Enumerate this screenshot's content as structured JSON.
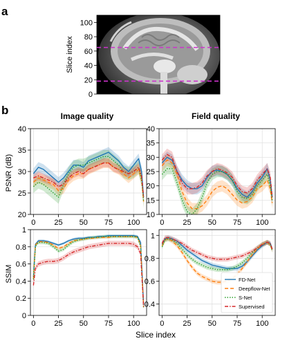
{
  "panel_labels": {
    "a": "a",
    "b": "b"
  },
  "column_titles": [
    "Image quality",
    "Field quality"
  ],
  "chart_data": [
    {
      "type": "image",
      "panel": "a",
      "ylabel": "Slice index",
      "ylim": [
        0,
        110
      ],
      "yticks": [
        0,
        20,
        40,
        60,
        80,
        100
      ],
      "lines": [
        {
          "y": 65,
          "color": "#cc33cc",
          "style": "dashed"
        },
        {
          "y": 18,
          "color": "#cc33cc",
          "style": "dashed"
        }
      ]
    },
    {
      "type": "line",
      "panel": "PSNR-image",
      "ylabel": "PSNR (dB)",
      "ylim": [
        20,
        40
      ],
      "xlim": [
        -3,
        113
      ],
      "xticks": [
        0,
        25,
        50,
        75,
        100
      ],
      "yticks": [
        20,
        25,
        30,
        35,
        40
      ],
      "grid": true,
      "series": [
        {
          "name": "FD-Net",
          "color": "#1f77b4",
          "style": "solid",
          "x": [
            0,
            5,
            10,
            15,
            20,
            25,
            30,
            35,
            40,
            45,
            50,
            55,
            60,
            65,
            70,
            75,
            80,
            85,
            90,
            95,
            100,
            105,
            108,
            110
          ],
          "y": [
            29.5,
            31,
            30.5,
            29.5,
            28.5,
            27.5,
            28.5,
            30,
            31.5,
            31.5,
            31,
            32.5,
            33,
            33.5,
            34,
            34.5,
            33.5,
            32.5,
            31,
            30,
            31.5,
            33,
            30,
            24
          ],
          "band": 1.2
        },
        {
          "name": "Deepflow-Net",
          "color": "#ff7f0e",
          "style": "dashed",
          "x": [
            0,
            5,
            10,
            15,
            20,
            25,
            30,
            35,
            40,
            45,
            50,
            55,
            60,
            65,
            70,
            75,
            80,
            85,
            90,
            95,
            100,
            105,
            108,
            110
          ],
          "y": [
            27.5,
            28.5,
            28,
            27.5,
            27,
            25.5,
            26,
            28,
            29,
            29.5,
            29.5,
            30.5,
            31,
            31.5,
            32,
            32,
            31,
            30.5,
            29.5,
            28.5,
            29.5,
            30.5,
            28,
            23
          ],
          "band": 1.2
        },
        {
          "name": "S-Net",
          "color": "#2ca02c",
          "style": "dotted",
          "x": [
            0,
            5,
            10,
            15,
            20,
            25,
            30,
            35,
            40,
            45,
            50,
            55,
            60,
            65,
            70,
            75,
            80,
            85,
            90,
            95,
            100,
            105,
            108,
            110
          ],
          "y": [
            26.5,
            27.5,
            27,
            26,
            25,
            24,
            27,
            29.5,
            31,
            31.5,
            31.5,
            32,
            32.5,
            33,
            33.5,
            33.5,
            32.5,
            31.5,
            30,
            29.5,
            30,
            31,
            28,
            23
          ],
          "band": 1.5
        },
        {
          "name": "Supervised",
          "color": "#d62728",
          "style": "dashdot",
          "x": [
            0,
            5,
            10,
            15,
            20,
            25,
            30,
            35,
            40,
            45,
            50,
            55,
            60,
            65,
            70,
            75,
            80,
            85,
            90,
            95,
            100,
            105,
            108,
            110
          ],
          "y": [
            28.5,
            29,
            28.5,
            28,
            27.5,
            26.5,
            27,
            28.5,
            29.5,
            30,
            29.5,
            30.5,
            31,
            31.5,
            32,
            32,
            31,
            30.5,
            30,
            29.5,
            30,
            31,
            29,
            24
          ],
          "band": 1.0
        }
      ]
    },
    {
      "type": "line",
      "panel": "PSNR-field",
      "ylim": [
        10,
        40
      ],
      "xlim": [
        -3,
        113
      ],
      "xticks": [
        0,
        25,
        50,
        75,
        100
      ],
      "yticks": [
        10,
        15,
        20,
        25,
        30,
        35,
        40
      ],
      "grid": true,
      "series": [
        {
          "name": "FD-Net",
          "color": "#1f77b4",
          "style": "solid",
          "x": [
            0,
            5,
            10,
            15,
            20,
            25,
            30,
            35,
            40,
            45,
            50,
            55,
            60,
            65,
            70,
            75,
            80,
            85,
            90,
            95,
            100,
            105,
            108,
            110
          ],
          "y": [
            28,
            30,
            29,
            25,
            22,
            20,
            19,
            19,
            20,
            23,
            25,
            25.5,
            25,
            24,
            22,
            19,
            17,
            16,
            18,
            21,
            23,
            26,
            22,
            16
          ],
          "band": 2
        },
        {
          "name": "Deepflow-Net",
          "color": "#ff7f0e",
          "style": "dashed",
          "x": [
            0,
            5,
            10,
            15,
            20,
            25,
            30,
            35,
            40,
            45,
            50,
            55,
            60,
            65,
            70,
            75,
            80,
            85,
            90,
            95,
            100,
            105,
            108,
            110
          ],
          "y": [
            27,
            29,
            28,
            24,
            18,
            14,
            12,
            12,
            13,
            15,
            18,
            19.5,
            20,
            19,
            17,
            15,
            14,
            14.5,
            16,
            19,
            20,
            22,
            19,
            14
          ],
          "band": 2
        },
        {
          "name": "S-Net",
          "color": "#2ca02c",
          "style": "dotted",
          "x": [
            0,
            5,
            10,
            15,
            20,
            25,
            30,
            35,
            40,
            45,
            50,
            55,
            60,
            65,
            70,
            75,
            80,
            85,
            90,
            95,
            100,
            105,
            108,
            110
          ],
          "y": [
            24,
            26,
            26,
            21,
            15,
            11,
            10,
            12,
            16,
            21,
            24,
            25,
            25,
            24,
            22,
            18,
            16,
            15.5,
            17,
            20,
            22,
            24,
            20,
            15
          ],
          "band": 2
        },
        {
          "name": "Supervised",
          "color": "#d62728",
          "style": "dashdot",
          "x": [
            0,
            5,
            10,
            15,
            20,
            25,
            30,
            35,
            40,
            45,
            50,
            55,
            60,
            65,
            70,
            75,
            80,
            85,
            90,
            95,
            100,
            105,
            108,
            110
          ],
          "y": [
            29,
            31,
            30,
            25,
            21,
            19,
            19,
            19.5,
            21,
            23.5,
            25,
            26,
            25.5,
            24.5,
            23,
            20,
            18,
            17.5,
            19,
            22,
            24,
            26,
            23,
            16
          ],
          "band": 2
        }
      ]
    },
    {
      "type": "line",
      "panel": "SSIM-image",
      "xlabel": "",
      "ylabel": "SSIM",
      "ylim": [
        0.0,
        1.0
      ],
      "xlim": [
        -3,
        113
      ],
      "xticks": [
        0,
        25,
        50,
        75,
        100
      ],
      "yticks": [
        0.0,
        0.2,
        0.4,
        0.6,
        0.8,
        1.0
      ],
      "grid": true,
      "series": [
        {
          "name": "FD-Net",
          "color": "#1f77b4",
          "style": "solid",
          "x": [
            0,
            2,
            5,
            10,
            15,
            20,
            25,
            30,
            35,
            40,
            45,
            50,
            55,
            60,
            65,
            70,
            75,
            80,
            85,
            90,
            95,
            100,
            104,
            107,
            110
          ],
          "y": [
            0.45,
            0.83,
            0.87,
            0.87,
            0.86,
            0.84,
            0.82,
            0.84,
            0.87,
            0.89,
            0.9,
            0.9,
            0.91,
            0.91,
            0.92,
            0.92,
            0.93,
            0.93,
            0.93,
            0.93,
            0.93,
            0.93,
            0.92,
            0.85,
            0.12
          ],
          "band": 0.015
        },
        {
          "name": "Deepflow-Net",
          "color": "#ff7f0e",
          "style": "dashed",
          "x": [
            0,
            2,
            5,
            10,
            15,
            20,
            25,
            30,
            35,
            40,
            45,
            50,
            55,
            60,
            65,
            70,
            75,
            80,
            85,
            90,
            95,
            100,
            104,
            107,
            110
          ],
          "y": [
            0.43,
            0.82,
            0.86,
            0.86,
            0.85,
            0.82,
            0.78,
            0.8,
            0.84,
            0.87,
            0.88,
            0.89,
            0.9,
            0.9,
            0.91,
            0.91,
            0.91,
            0.92,
            0.92,
            0.92,
            0.92,
            0.92,
            0.91,
            0.82,
            0.1
          ],
          "band": 0.015
        },
        {
          "name": "S-Net",
          "color": "#2ca02c",
          "style": "dotted",
          "x": [
            0,
            2,
            5,
            10,
            15,
            20,
            25,
            30,
            35,
            40,
            45,
            50,
            55,
            60,
            65,
            70,
            75,
            80,
            85,
            90,
            95,
            100,
            104,
            107,
            110
          ],
          "y": [
            0.42,
            0.81,
            0.85,
            0.85,
            0.84,
            0.8,
            0.75,
            0.77,
            0.82,
            0.86,
            0.88,
            0.89,
            0.9,
            0.91,
            0.91,
            0.92,
            0.92,
            0.92,
            0.92,
            0.92,
            0.92,
            0.92,
            0.91,
            0.8,
            0.08
          ],
          "band": 0.02
        },
        {
          "name": "Supervised",
          "color": "#d62728",
          "style": "dashdot",
          "x": [
            0,
            2,
            5,
            10,
            15,
            20,
            25,
            30,
            35,
            40,
            45,
            50,
            55,
            60,
            65,
            70,
            75,
            80,
            85,
            90,
            95,
            100,
            104,
            107,
            110
          ],
          "y": [
            0.35,
            0.55,
            0.6,
            0.62,
            0.63,
            0.63,
            0.64,
            0.67,
            0.71,
            0.74,
            0.76,
            0.78,
            0.8,
            0.81,
            0.82,
            0.83,
            0.84,
            0.84,
            0.84,
            0.84,
            0.84,
            0.83,
            0.8,
            0.72,
            0.1
          ],
          "band": 0.03
        }
      ]
    },
    {
      "type": "line",
      "panel": "SSIM-field",
      "ylim": [
        0.3,
        1.05
      ],
      "xlim": [
        -3,
        113
      ],
      "xticks": [
        0,
        25,
        50,
        75,
        100
      ],
      "yticks": [
        0.4,
        0.6,
        0.8,
        1.0
      ],
      "grid": true,
      "legend": "bottom-right",
      "series": [
        {
          "name": "FD-Net",
          "color": "#1f77b4",
          "style": "solid",
          "x": [
            0,
            3,
            6,
            10,
            15,
            20,
            25,
            30,
            35,
            40,
            45,
            50,
            55,
            60,
            65,
            70,
            75,
            80,
            85,
            90,
            95,
            100,
            105,
            108,
            110
          ],
          "y": [
            0.92,
            0.97,
            0.98,
            0.97,
            0.95,
            0.91,
            0.87,
            0.84,
            0.81,
            0.78,
            0.76,
            0.74,
            0.73,
            0.72,
            0.71,
            0.71,
            0.71,
            0.73,
            0.77,
            0.82,
            0.87,
            0.91,
            0.94,
            0.93,
            0.88
          ],
          "band": 0.02
        },
        {
          "name": "Deepflow-Net",
          "color": "#ff7f0e",
          "style": "dashed",
          "x": [
            0,
            3,
            6,
            10,
            15,
            20,
            25,
            30,
            35,
            40,
            45,
            50,
            55,
            60,
            65,
            70,
            75,
            80,
            85,
            90,
            95,
            100,
            105,
            108,
            110
          ],
          "y": [
            0.91,
            0.96,
            0.97,
            0.95,
            0.91,
            0.85,
            0.78,
            0.72,
            0.67,
            0.64,
            0.62,
            0.6,
            0.59,
            0.59,
            0.6,
            0.62,
            0.66,
            0.71,
            0.77,
            0.83,
            0.88,
            0.92,
            0.94,
            0.92,
            0.87
          ],
          "band": 0.02
        },
        {
          "name": "S-Net",
          "color": "#2ca02c",
          "style": "dotted",
          "x": [
            0,
            3,
            6,
            10,
            15,
            20,
            25,
            30,
            35,
            40,
            45,
            50,
            55,
            60,
            65,
            70,
            75,
            80,
            85,
            90,
            95,
            100,
            105,
            108,
            110
          ],
          "y": [
            0.9,
            0.96,
            0.97,
            0.96,
            0.93,
            0.88,
            0.83,
            0.79,
            0.76,
            0.74,
            0.72,
            0.71,
            0.7,
            0.7,
            0.7,
            0.71,
            0.73,
            0.76,
            0.8,
            0.85,
            0.89,
            0.92,
            0.94,
            0.92,
            0.87
          ],
          "band": 0.02
        },
        {
          "name": "Supervised",
          "color": "#d62728",
          "style": "dashdot",
          "x": [
            0,
            3,
            6,
            10,
            15,
            20,
            25,
            30,
            35,
            40,
            45,
            50,
            55,
            60,
            65,
            70,
            75,
            80,
            85,
            90,
            95,
            100,
            105,
            108,
            110
          ],
          "y": [
            0.93,
            0.98,
            0.98,
            0.97,
            0.95,
            0.93,
            0.9,
            0.87,
            0.85,
            0.83,
            0.81,
            0.8,
            0.79,
            0.79,
            0.79,
            0.8,
            0.81,
            0.82,
            0.84,
            0.86,
            0.89,
            0.92,
            0.94,
            0.93,
            0.88
          ],
          "band": 0.02
        }
      ]
    }
  ],
  "shared_xlabel": "Slice index"
}
